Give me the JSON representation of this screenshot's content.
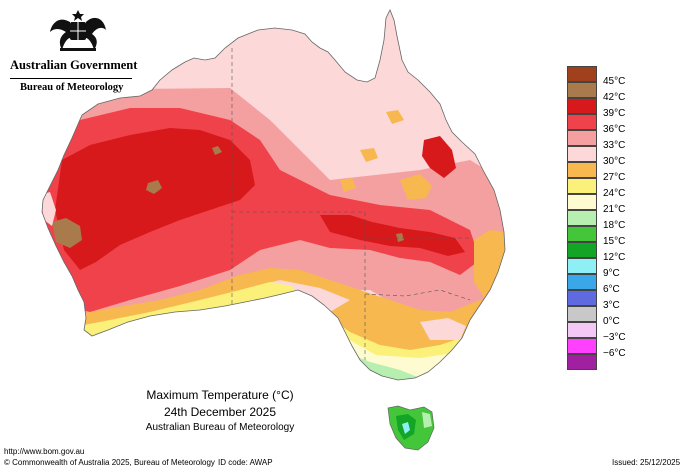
{
  "header": {
    "government": "Australian Government",
    "bureau": "Bureau of Meteorology",
    "crest_icon": "coat-of-arms-icon"
  },
  "map": {
    "title": "Maximum Temperature (°C)",
    "date": "24th December 2025",
    "source": "Australian Bureau of Meteorology"
  },
  "legend": {
    "items": [
      {
        "label": "45°C",
        "color": "#a0401c"
      },
      {
        "label": "42°C",
        "color": "#a87a4c"
      },
      {
        "label": "39°C",
        "color": "#d8191c"
      },
      {
        "label": "36°C",
        "color": "#f0424a"
      },
      {
        "label": "33°C",
        "color": "#f5a0a0"
      },
      {
        "label": "30°C",
        "color": "#fcd8d8"
      },
      {
        "label": "27°C",
        "color": "#f7b84f"
      },
      {
        "label": "24°C",
        "color": "#fbf07a"
      },
      {
        "label": "21°C",
        "color": "#fdfbcf"
      },
      {
        "label": "18°C",
        "color": "#b6efb0"
      },
      {
        "label": "15°C",
        "color": "#43c63a"
      },
      {
        "label": "12°C",
        "color": "#12a526"
      },
      {
        "label": "9°C",
        "color": "#8ef0f4"
      },
      {
        "label": "6°C",
        "color": "#3aa8e8"
      },
      {
        "label": "3°C",
        "color": "#5f6ae0"
      },
      {
        "label": "0°C",
        "color": "#c8c8c8"
      },
      {
        "label": "−3°C",
        "color": "#f4c8f4"
      },
      {
        "label": "−6°C",
        "color": "#ff40ff"
      },
      {
        "label": "",
        "color": "#a020a0"
      }
    ]
  },
  "footer": {
    "url": "http://www.bom.gov.au",
    "copyright": "© Commonwealth of Australia 2025, Bureau of Meteorology",
    "id_code": "ID code: AWAP",
    "issued": "Issued: 25/12/2025"
  }
}
